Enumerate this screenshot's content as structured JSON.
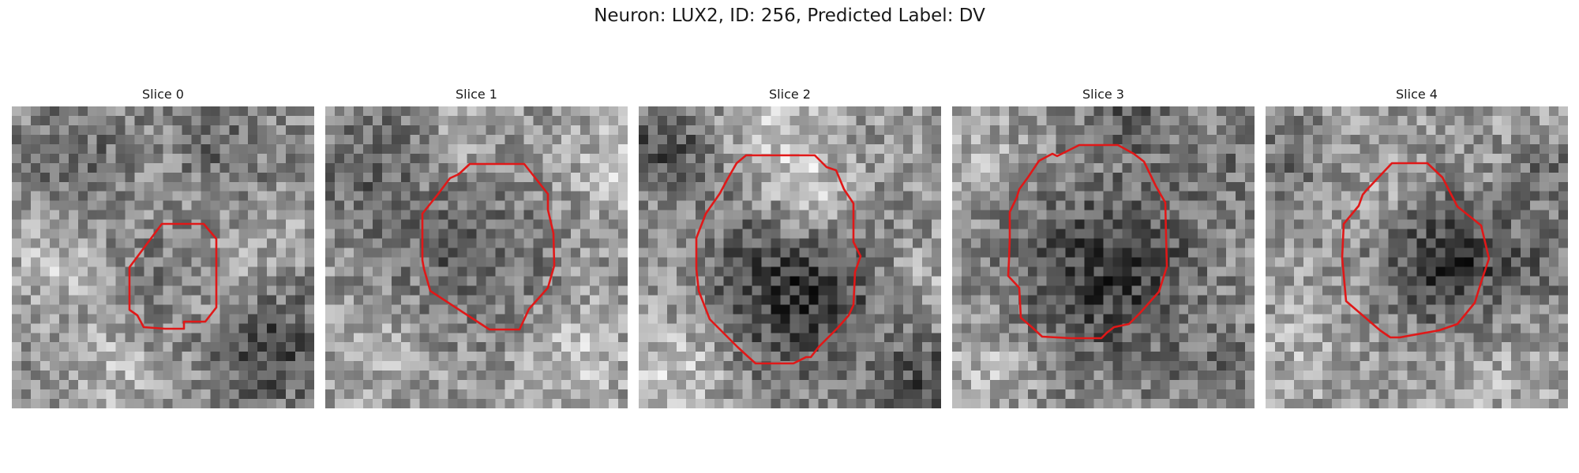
{
  "figure": {
    "title": "Neuron: LUX2, ID: 256, Predicted Label: DV"
  },
  "contour_color": "#e01818",
  "slices": [
    {
      "title": "Slice 0"
    },
    {
      "title": "Slice 1"
    },
    {
      "title": "Slice 2"
    },
    {
      "title": "Slice 3"
    },
    {
      "title": "Slice 4"
    }
  ]
}
